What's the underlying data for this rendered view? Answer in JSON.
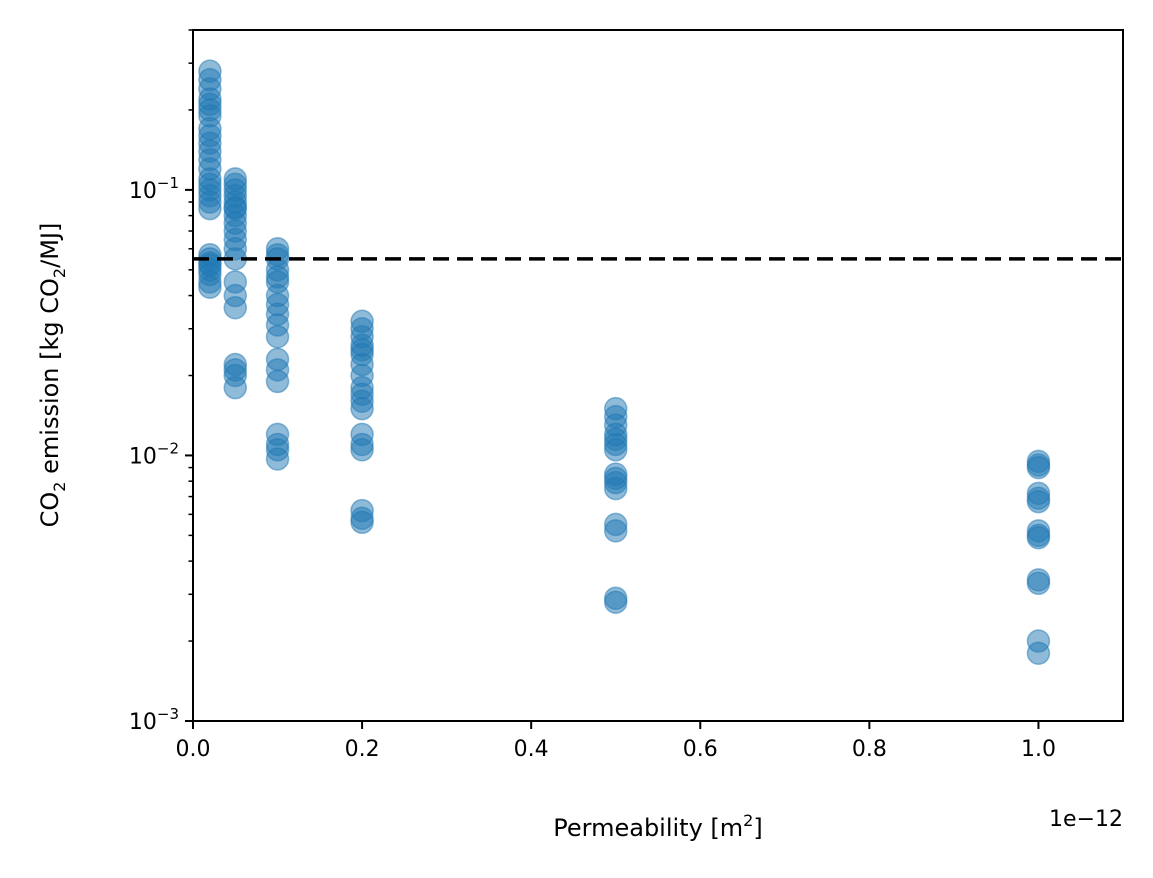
{
  "chart_data": {
    "type": "scatter",
    "title": "",
    "xlabel": "Permeability [m",
    "xlabel_sup": "2",
    "xlabel_tail": "]",
    "ylabel_parts": {
      "a": "CO",
      "a_sub": "2",
      "b": " emission [kg CO",
      "b_sub": "2",
      "c": "/MJ]"
    },
    "x_offset_label": "1e−12",
    "xscale": "linear",
    "yscale": "log",
    "xlim": [
      0.0,
      1.1
    ],
    "ylim": [
      0.001,
      0.4
    ],
    "x_unit_multiplier": 1e-12,
    "x_ticks": [
      {
        "value": 0.0,
        "label": "0.0"
      },
      {
        "value": 0.2,
        "label": "0.2"
      },
      {
        "value": 0.4,
        "label": "0.4"
      },
      {
        "value": 0.6,
        "label": "0.6"
      },
      {
        "value": 0.8,
        "label": "0.8"
      },
      {
        "value": 1.0,
        "label": "1.0"
      }
    ],
    "y_ticks": [
      {
        "value": 0.001,
        "base": "10",
        "exp": "−3"
      },
      {
        "value": 0.01,
        "base": "10",
        "exp": "−2"
      },
      {
        "value": 0.1,
        "base": "10",
        "exp": "−1"
      }
    ],
    "grid": false,
    "reference_line": {
      "y": 0.055,
      "style": "dashed",
      "color": "#000000"
    },
    "marker_color": "#1f77b4",
    "series": [
      {
        "x": [
          0.02,
          0.02,
          0.02,
          0.02,
          0.02,
          0.02,
          0.02,
          0.02,
          0.02,
          0.02,
          0.02,
          0.02,
          0.02,
          0.02,
          0.02,
          0.02,
          0.02,
          0.02,
          0.02,
          0.02,
          0.02,
          0.02,
          0.02,
          0.02,
          0.02,
          0.02,
          0.02,
          0.05,
          0.05,
          0.05,
          0.05,
          0.05,
          0.05,
          0.05,
          0.05,
          0.05,
          0.05,
          0.05,
          0.05,
          0.05,
          0.05,
          0.05,
          0.05,
          0.05,
          0.05,
          0.05,
          0.05,
          0.1,
          0.1,
          0.1,
          0.1,
          0.1,
          0.1,
          0.1,
          0.1,
          0.1,
          0.1,
          0.1,
          0.1,
          0.1,
          0.1,
          0.1,
          0.1,
          0.1,
          0.1,
          0.2,
          0.2,
          0.2,
          0.2,
          0.2,
          0.2,
          0.2,
          0.2,
          0.2,
          0.2,
          0.2,
          0.2,
          0.2,
          0.2,
          0.2,
          0.2,
          0.2,
          0.2,
          0.5,
          0.5,
          0.5,
          0.5,
          0.5,
          0.5,
          0.5,
          0.5,
          0.5,
          0.5,
          0.5,
          0.5,
          0.5,
          0.5,
          0.5,
          1.0,
          1.0,
          1.0,
          1.0,
          1.0,
          1.0,
          1.0,
          1.0,
          1.0,
          1.0,
          1.0,
          1.0,
          1.0
        ],
        "y": [
          0.28,
          0.26,
          0.24,
          0.22,
          0.21,
          0.2,
          0.19,
          0.17,
          0.16,
          0.15,
          0.14,
          0.13,
          0.12,
          0.11,
          0.105,
          0.1,
          0.095,
          0.09,
          0.085,
          0.057,
          0.055,
          0.053,
          0.052,
          0.05,
          0.048,
          0.045,
          0.043,
          0.11,
          0.105,
          0.1,
          0.095,
          0.09,
          0.085,
          0.08,
          0.07,
          0.065,
          0.06,
          0.055,
          0.045,
          0.04,
          0.036,
          0.022,
          0.02,
          0.018,
          0.021,
          0.086,
          0.075,
          0.06,
          0.057,
          0.055,
          0.05,
          0.047,
          0.045,
          0.04,
          0.037,
          0.034,
          0.031,
          0.028,
          0.023,
          0.021,
          0.019,
          0.012,
          0.011,
          0.0105,
          0.0097,
          0.032,
          0.03,
          0.028,
          0.026,
          0.025,
          0.024,
          0.022,
          0.02,
          0.018,
          0.017,
          0.016,
          0.015,
          0.012,
          0.011,
          0.0105,
          0.0062,
          0.0058,
          0.0056,
          0.015,
          0.014,
          0.013,
          0.012,
          0.0115,
          0.011,
          0.0105,
          0.0085,
          0.0082,
          0.0079,
          0.0075,
          0.0055,
          0.0052,
          0.0029,
          0.0028,
          0.0095,
          0.0092,
          0.009,
          0.0072,
          0.0069,
          0.0067,
          0.0052,
          0.005,
          0.0049,
          0.0034,
          0.0033,
          0.002,
          0.0018
        ]
      }
    ]
  }
}
